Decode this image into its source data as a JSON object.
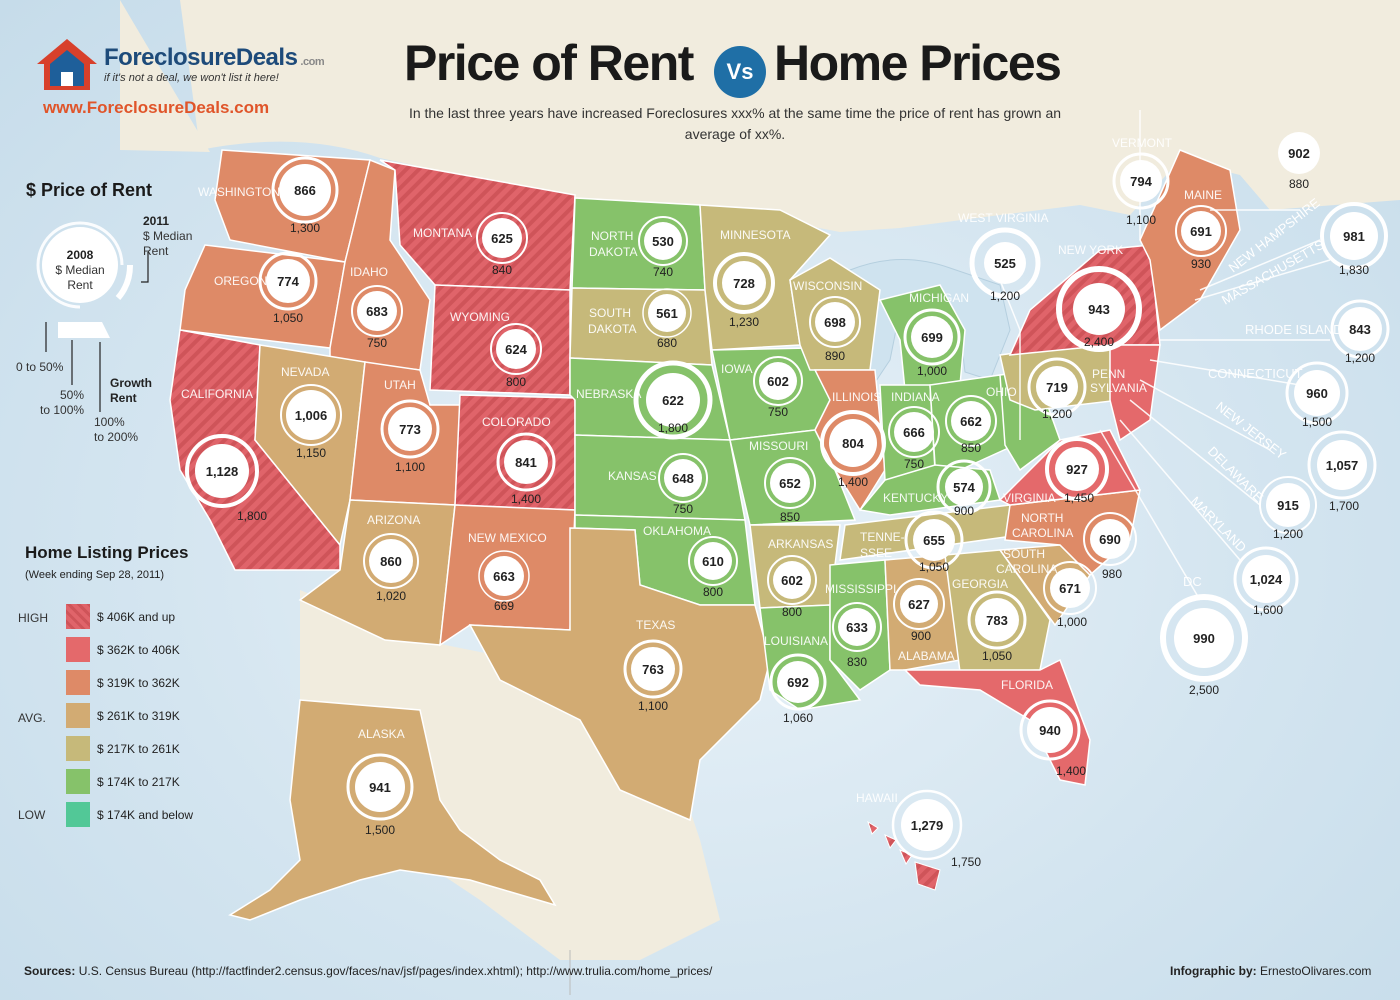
{
  "brand": {
    "name": "ForeclosureDeals",
    "dot_com": ".com",
    "tagline": "if it's not a deal, we won't list it here!",
    "url": "www.ForeclosureDeals.com"
  },
  "title": {
    "left": "Price of Rent",
    "vs": "Vs",
    "right": "Home Prices"
  },
  "subtitle": "In the last three years have increased Foreclosures xxx% at the same time the price of rent has grown an average of xx%.",
  "rent_legend": {
    "title": "$ Price of Rent",
    "year_2011": "2011",
    "median_2011": "$ Median",
    "rent_2011": "Rent",
    "year_2008": "2008",
    "median_2008": "$ Median",
    "rent_2008": "Rent",
    "growth_0_50": "0 to 50%",
    "growth_50_100_a": "50%",
    "growth_50_100_b": "to 100%",
    "growth_100_200_a": "100%",
    "growth_100_200_b": "to 200%",
    "growth_label_a": "Growth",
    "growth_label_b": "Rent"
  },
  "price_legend": {
    "title": "Home Listing Prices",
    "subtitle": "(Week ending Sep 28, 2011)",
    "level_high": "HIGH",
    "level_avg": "AVG.",
    "level_low": "LOW",
    "items": [
      {
        "label": "$ 406K and up",
        "color": "#e0646a",
        "hatched": true
      },
      {
        "label": "$ 362K to 406K",
        "color": "#e4696b",
        "hatched": false
      },
      {
        "label": "$ 319K to 362K",
        "color": "#de8a67",
        "hatched": false
      },
      {
        "label": "$ 261K to 319K",
        "color": "#d2ab73",
        "hatched": false
      },
      {
        "label": "$ 217K to 261K",
        "color": "#c6b97a",
        "hatched": false
      },
      {
        "label": "$ 174K to 217K",
        "color": "#86c26a",
        "hatched": false
      },
      {
        "label": "$ 174K and below",
        "color": "#52c897",
        "hatched": false
      }
    ]
  },
  "states": [
    {
      "name": "WASHINGTON",
      "rent_2008": "866",
      "rent_2011": "1,300"
    },
    {
      "name": "OREGON",
      "rent_2008": "774",
      "rent_2011": "1,050"
    },
    {
      "name": "CALIFORNIA",
      "rent_2008": "1,128",
      "rent_2011": "1,800"
    },
    {
      "name": "IDAHO",
      "rent_2008": "683",
      "rent_2011": "750"
    },
    {
      "name": "NEVADA",
      "rent_2008": "1,006",
      "rent_2011": "1,150"
    },
    {
      "name": "UTAH",
      "rent_2008": "773",
      "rent_2011": "1,100"
    },
    {
      "name": "ARIZONA",
      "rent_2008": "860",
      "rent_2011": "1,020"
    },
    {
      "name": "MONTANA",
      "rent_2008": "625",
      "rent_2011": "840"
    },
    {
      "name": "WYOMING",
      "rent_2008": "624",
      "rent_2011": "800"
    },
    {
      "name": "COLORADO",
      "rent_2008": "841",
      "rent_2011": "1,400"
    },
    {
      "name": "NEW MEXICO",
      "rent_2008": "663",
      "rent_2011": "669"
    },
    {
      "name": "NORTH DAKOTA",
      "name_a": "NORTH",
      "name_b": "DAKOTA",
      "rent_2008": "530",
      "rent_2011": "740"
    },
    {
      "name": "SOUTH DAKOTA",
      "name_a": "SOUTH",
      "name_b": "DAKOTA",
      "rent_2008": "561",
      "rent_2011": "680"
    },
    {
      "name": "NEBRASKA",
      "rent_2008": "622",
      "rent_2011": "1,800"
    },
    {
      "name": "KANSAS",
      "rent_2008": "648",
      "rent_2011": "750"
    },
    {
      "name": "OKLAHOMA",
      "rent_2008": "610",
      "rent_2011": "800"
    },
    {
      "name": "TEXAS",
      "rent_2008": "763",
      "rent_2011": "1,100"
    },
    {
      "name": "MINNESOTA",
      "rent_2008": "728",
      "rent_2011": "1,230"
    },
    {
      "name": "IOWA",
      "rent_2008": "602",
      "rent_2011": "750"
    },
    {
      "name": "MISSOURI",
      "rent_2008": "652",
      "rent_2011": "850"
    },
    {
      "name": "ARKANSAS",
      "rent_2008": "602",
      "rent_2011": "800"
    },
    {
      "name": "LOUISIANA",
      "rent_2008": "692",
      "rent_2011": "1,060"
    },
    {
      "name": "WISCONSIN",
      "rent_2008": "698",
      "rent_2011": "890"
    },
    {
      "name": "ILLINOIS",
      "rent_2008": "804",
      "rent_2011": "1,400"
    },
    {
      "name": "MICHIGAN",
      "rent_2008": "699",
      "rent_2011": "1,000"
    },
    {
      "name": "INDIANA",
      "rent_2008": "666",
      "rent_2011": "750"
    },
    {
      "name": "OHIO",
      "rent_2008": "662",
      "rent_2011": "850"
    },
    {
      "name": "KENTUCKY",
      "rent_2008": "574",
      "rent_2011": "900"
    },
    {
      "name": "TENNESSEE",
      "name_a": "TENNE-",
      "name_b": "SSEE",
      "rent_2008": "655",
      "rent_2011": "1,050"
    },
    {
      "name": "MISSISSIPPI",
      "rent_2008": "633",
      "rent_2011": "830"
    },
    {
      "name": "ALABAMA",
      "rent_2008": "627",
      "rent_2011": "900"
    },
    {
      "name": "GEORGIA",
      "rent_2008": "783",
      "rent_2011": "1,050"
    },
    {
      "name": "FLORIDA",
      "rent_2008": "940",
      "rent_2011": "1,400"
    },
    {
      "name": "SOUTH CAROLINA",
      "name_a": "SOUTH",
      "name_b": "CAROLINA",
      "rent_2008": "671",
      "rent_2011": "1,000"
    },
    {
      "name": "NORTH CAROLINA",
      "name_a": "NORTH",
      "name_b": "CAROLINA",
      "rent_2008": "690",
      "rent_2011": "980"
    },
    {
      "name": "VIRGINIA",
      "rent_2008": "927",
      "rent_2011": "1,450"
    },
    {
      "name": "WEST VIRGINIA",
      "rent_2008": "525",
      "rent_2011": "1,200"
    },
    {
      "name": "PENNSYLVANIA",
      "name_a": "PENN",
      "name_b": "SYLVANIA",
      "rent_2008": "719",
      "rent_2011": "1,200"
    },
    {
      "name": "NEW YORK",
      "rent_2008": "943",
      "rent_2011": "2,400"
    },
    {
      "name": "VERMONT",
      "rent_2008": "794",
      "rent_2011": "1,100"
    },
    {
      "name": "MAINE",
      "rent_2008": "691",
      "rent_2011": "930"
    },
    {
      "name": "NEW HAMPSHIRE",
      "rent_2008": "902",
      "rent_2011": "880"
    },
    {
      "name": "MASSACHUSETTS",
      "rent_2008": "981",
      "rent_2011": "1,830"
    },
    {
      "name": "RHODE ISLAND",
      "rent_2008": "843",
      "rent_2011": "1,200"
    },
    {
      "name": "CONNECTICUT",
      "rent_2008": "960",
      "rent_2011": "1,500"
    },
    {
      "name": "NEW JERSEY",
      "rent_2008": "1,057",
      "rent_2011": "1,700"
    },
    {
      "name": "DELAWARE",
      "rent_2008": "915",
      "rent_2011": "1,200"
    },
    {
      "name": "MARYLAND",
      "rent_2008": "1,024",
      "rent_2011": "1,600"
    },
    {
      "name": "DC",
      "rent_2008": "990",
      "rent_2011": "2,500"
    },
    {
      "name": "ALASKA",
      "rent_2008": "941",
      "rent_2011": "1,500"
    },
    {
      "name": "HAWAII",
      "rent_2008": "1,279",
      "rent_2011": "1,750"
    }
  ],
  "footer": {
    "sources_label": "Sources:",
    "sources_text": "U.S. Census Bureau (http://factfinder2.census.gov/faces/nav/jsf/pages/index.xhtml);  http://www.trulia.com/home_prices/",
    "credit_label": "Infographic by:",
    "credit_text": "ErnestoOlivares.com"
  }
}
